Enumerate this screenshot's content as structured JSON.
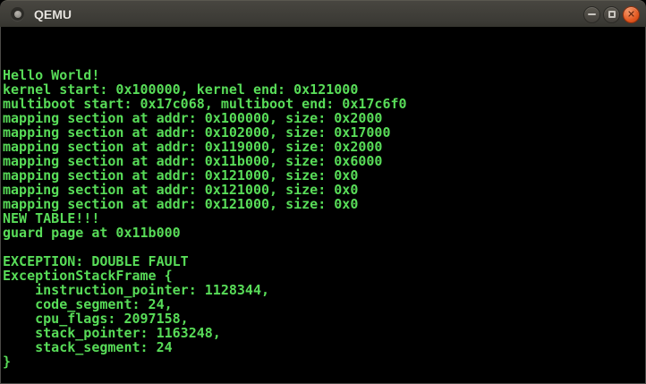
{
  "window": {
    "title": "QEMU",
    "controls": {
      "minimize": "minimize",
      "maximize": "maximize",
      "close": "close"
    }
  },
  "colors": {
    "terminal_text": "#58dc58",
    "terminal_background": "#000000",
    "titlebar_background": "#3c3b37",
    "close_button": "#e2571f"
  },
  "terminal": {
    "lines": [
      "Hello World!",
      "kernel start: 0x100000, kernel end: 0x121000",
      "multiboot start: 0x17c068, multiboot end: 0x17c6f0",
      "mapping section at addr: 0x100000, size: 0x2000",
      "mapping section at addr: 0x102000, size: 0x17000",
      "mapping section at addr: 0x119000, size: 0x2000",
      "mapping section at addr: 0x11b000, size: 0x6000",
      "mapping section at addr: 0x121000, size: 0x0",
      "mapping section at addr: 0x121000, size: 0x0",
      "mapping section at addr: 0x121000, size: 0x0",
      "NEW TABLE!!!",
      "guard page at 0x11b000",
      "",
      "EXCEPTION: DOUBLE FAULT",
      "ExceptionStackFrame {",
      "    instruction_pointer: 1128344,",
      "    code_segment: 24,",
      "    cpu_flags: 2097158,",
      "    stack_pointer: 1163248,",
      "    stack_segment: 24",
      "}"
    ]
  }
}
